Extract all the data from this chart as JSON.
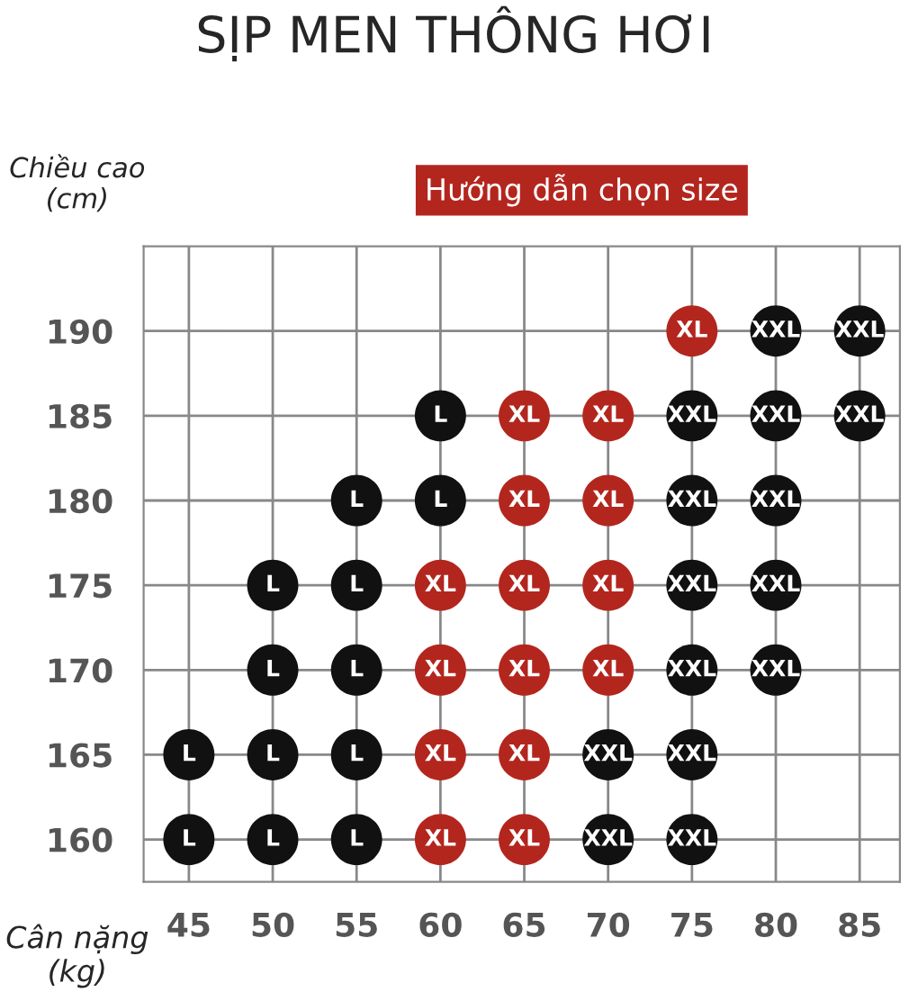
{
  "chart_data": {
    "type": "scatter",
    "title": "SỊP MEN THÔNG HƠI",
    "xlabel": "Cân nặng\n(kg)",
    "ylabel": "Chiều cao\n(cm)",
    "annotations": [
      "Hướng dẫn chọn size"
    ],
    "marker": "circle",
    "grid": true,
    "xlim": [
      42.3,
      87.4
    ],
    "ylim": [
      157.5,
      195
    ],
    "xticks": [
      45,
      50,
      55,
      60,
      65,
      70,
      75,
      80,
      85
    ],
    "yticks": [
      160,
      165,
      170,
      175,
      180,
      185,
      190
    ],
    "series": [
      {
        "color": "#111111",
        "x": [
          45,
          50,
          55,
          45,
          50,
          55,
          50,
          55,
          50,
          55,
          55,
          60,
          60
        ],
        "values": [
          160,
          160,
          160,
          165,
          165,
          165,
          170,
          170,
          175,
          175,
          180,
          180,
          185
        ],
        "value_labels": [
          "L",
          "L",
          "L",
          "L",
          "L",
          "L",
          "L",
          "L",
          "L",
          "L",
          "L",
          "L",
          "L"
        ]
      },
      {
        "color": "#b3261e",
        "x": [
          60,
          65,
          60,
          65,
          60,
          65,
          70,
          60,
          65,
          70,
          65,
          70,
          65,
          70,
          75
        ],
        "values": [
          160,
          160,
          165,
          165,
          170,
          170,
          170,
          175,
          175,
          175,
          180,
          180,
          185,
          185,
          190
        ],
        "value_labels": [
          "XL",
          "XL",
          "XL",
          "XL",
          "XL",
          "XL",
          "XL",
          "XL",
          "XL",
          "XL",
          "XL",
          "XL",
          "XL",
          "XL",
          "XL"
        ]
      },
      {
        "color": "#111111",
        "x": [
          70,
          75,
          70,
          75,
          75,
          80,
          75,
          80,
          75,
          80,
          75,
          80,
          85,
          80,
          85
        ],
        "values": [
          160,
          160,
          165,
          165,
          170,
          170,
          175,
          175,
          180,
          180,
          185,
          185,
          185,
          190,
          190
        ],
        "value_labels": [
          "XXL",
          "XXL",
          "XXL",
          "XXL",
          "XXL",
          "XXL",
          "XXL",
          "XXL",
          "XXL",
          "XXL",
          "XXL",
          "XXL",
          "XXL",
          "XXL",
          "XXL"
        ]
      }
    ]
  }
}
